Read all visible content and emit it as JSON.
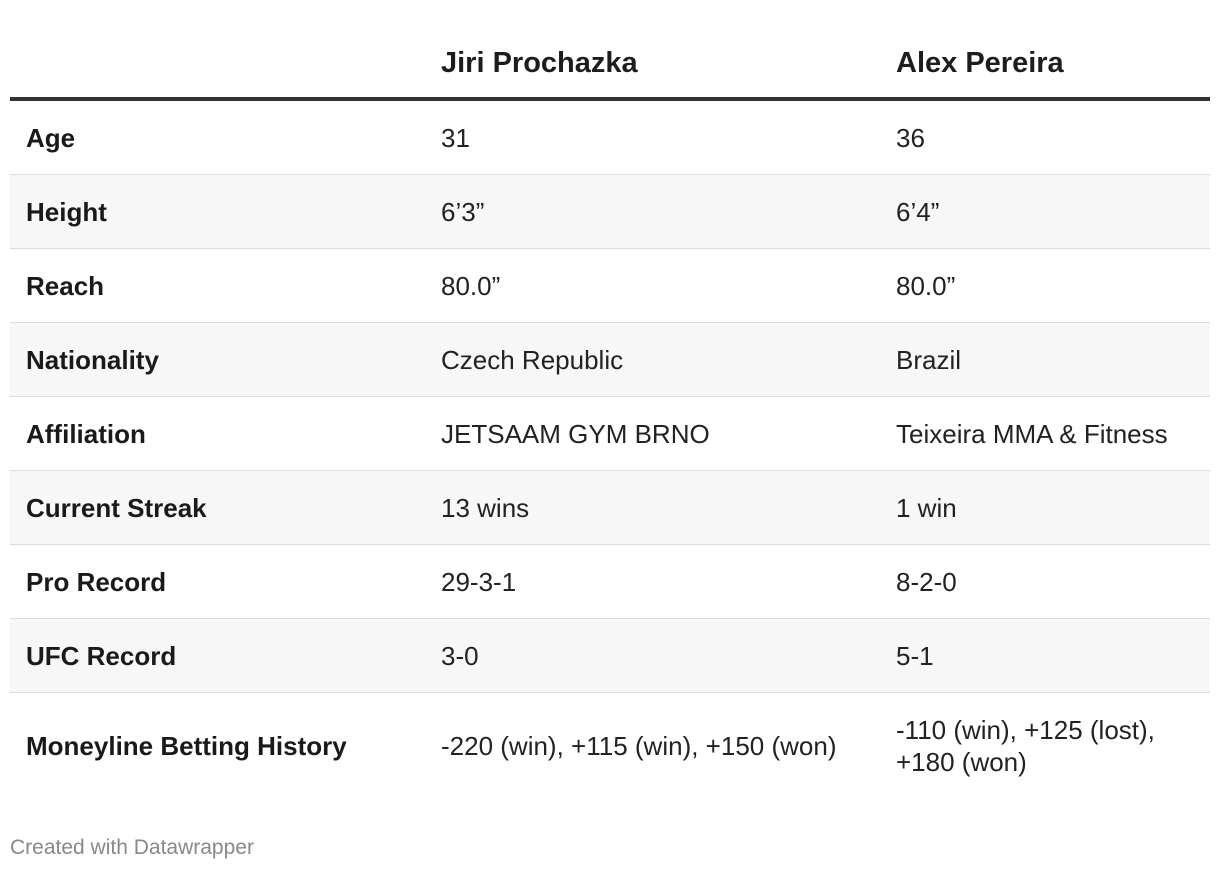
{
  "chart_data": {
    "type": "table",
    "columns": [
      "",
      "Jiri Prochazka",
      "Alex Pereira"
    ],
    "rows": [
      {
        "label": "Age",
        "values": [
          "31",
          "36"
        ]
      },
      {
        "label": "Height",
        "values": [
          "6’3”",
          "6’4”"
        ]
      },
      {
        "label": "Reach",
        "values": [
          "80.0”",
          "80.0”"
        ]
      },
      {
        "label": "Nationality",
        "values": [
          "Czech Republic",
          "Brazil"
        ]
      },
      {
        "label": "Affiliation",
        "values": [
          "JETSAAM GYM BRNO",
          "Teixeira MMA & Fitness"
        ]
      },
      {
        "label": "Current Streak",
        "values": [
          "13 wins",
          "1 win"
        ]
      },
      {
        "label": "Pro Record",
        "values": [
          "29-3-1",
          "8-2-0"
        ]
      },
      {
        "label": "UFC Record",
        "values": [
          "3-0",
          "5-1"
        ]
      },
      {
        "label": "Moneyline Betting History",
        "values": [
          "-220 (win), +115 (win), +150 (won)",
          "-110 (win), +125 (lost), +180 (won)"
        ]
      }
    ]
  },
  "footer": {
    "credit": "Created with Datawrapper"
  },
  "colors": {
    "header_rule": "#333333",
    "stripe": "#f7f7f7",
    "row_border": "#dcdcdc",
    "footer_text": "#888888"
  }
}
